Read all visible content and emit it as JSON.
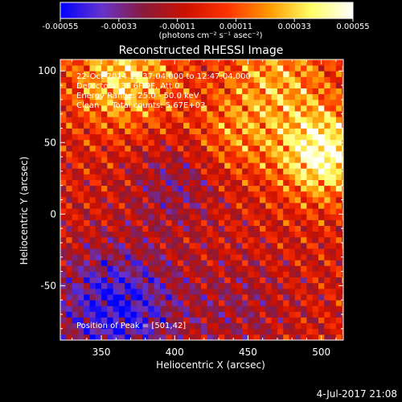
{
  "chart_data": {
    "type": "heatmap",
    "title": "Reconstructed RHESSI Image",
    "xlabel": "Heliocentric X (arcsec)",
    "ylabel": "Heliocentric Y (arcsec)",
    "xlim": [
      322,
      515
    ],
    "ylim": [
      -88,
      108
    ],
    "x_ticks": [
      350,
      400,
      450,
      500
    ],
    "y_ticks": [
      -50,
      0,
      50,
      100
    ],
    "grid": false,
    "colorbar": {
      "range": [
        -0.00055,
        0.00055
      ],
      "tick_values": [
        -0.00055,
        -0.00033,
        -0.00011,
        0.00011,
        0.00033,
        0.00055
      ],
      "tick_labels": [
        "-0.00055",
        "-0.00033",
        "-0.00011",
        "0.00011",
        "0.00033",
        "0.00055"
      ],
      "unit": "(photons cm⁻² s⁻¹ asec⁻²)",
      "colors": [
        "#0000ff",
        "#6633cc",
        "#8a1a3a",
        "#cc1100",
        "#ff3300",
        "#ff9900",
        "#ffff66",
        "#ffffff"
      ]
    },
    "annotations": [
      "22-Oct-2014 12:37:04.000 to 12:47:04.000",
      "Detectors: 3F 6F 9F, Att 0",
      "Energy Range: 25.0 - 50.0 keV",
      "Clean     Total counts: 5.67E+03",
      "Position of Peak = [501,42]"
    ],
    "peak": {
      "x": 501,
      "y": 42
    },
    "sources": [
      {
        "x": 501,
        "y": 42,
        "amplitude": 0.00055,
        "sigma": 22
      },
      {
        "x": 365,
        "y": 95,
        "amplitude": 0.0004,
        "sigma": 25
      },
      {
        "x": 470,
        "y": 95,
        "amplitude": 0.0003,
        "sigma": 25
      },
      {
        "x": 440,
        "y": 55,
        "amplitude": 0.0002,
        "sigma": 20
      },
      {
        "x": 360,
        "y": -65,
        "amplitude": -0.00045,
        "sigma": 30
      },
      {
        "x": 400,
        "y": 20,
        "amplitude": -0.0002,
        "sigma": 22
      },
      {
        "x": 445,
        "y": -65,
        "amplitude": -0.00015,
        "sigma": 25
      }
    ]
  },
  "footer": {
    "timestamp": "4-Jul-2017 21:08"
  }
}
